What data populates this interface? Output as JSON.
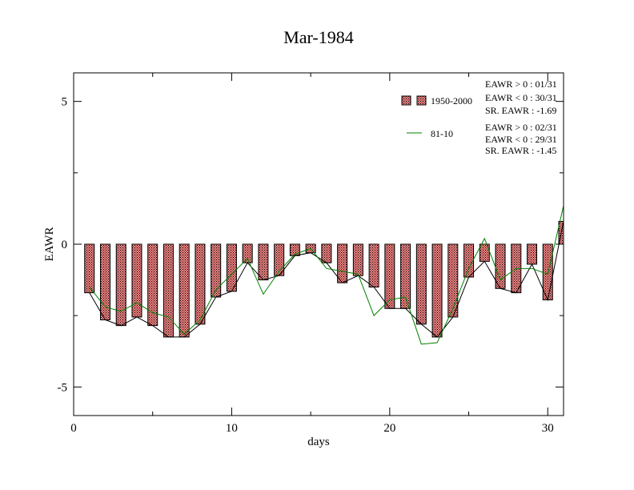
{
  "chart_data": {
    "type": "bar",
    "title": "Mar-1984",
    "xlabel": "days",
    "ylabel": "EAWR",
    "xlim": [
      0,
      31
    ],
    "ylim": [
      -6,
      6
    ],
    "x_ticks": [
      0,
      10,
      20,
      30
    ],
    "y_ticks": [
      -5,
      0,
      5
    ],
    "x": [
      1,
      2,
      3,
      4,
      5,
      6,
      7,
      8,
      9,
      10,
      11,
      12,
      13,
      14,
      15,
      16,
      17,
      18,
      19,
      20,
      21,
      22,
      23,
      24,
      25,
      26,
      27,
      28,
      29,
      30,
      31
    ],
    "legend_position": "top-right",
    "grid": false,
    "series": [
      {
        "name": "1950-2000",
        "kind": "bar",
        "color": "#e87878",
        "values": [
          -1.7,
          -2.65,
          -2.85,
          -2.55,
          -2.85,
          -3.25,
          -3.25,
          -2.8,
          -1.85,
          -1.65,
          -0.65,
          -1.25,
          -1.1,
          -0.4,
          -0.3,
          -0.65,
          -1.35,
          -1.1,
          -1.5,
          -2.25,
          -2.25,
          -2.8,
          -3.25,
          -2.55,
          -1.15,
          -0.6,
          -1.55,
          -1.7,
          -0.7,
          -1.95,
          0.8
        ]
      },
      {
        "name": "",
        "kind": "line",
        "color": "#000000",
        "values": [
          -1.7,
          -2.65,
          -2.85,
          -2.55,
          -2.85,
          -3.25,
          -3.25,
          -2.8,
          -1.85,
          -1.65,
          -0.65,
          -1.25,
          -1.1,
          -0.4,
          -0.3,
          -0.65,
          -1.35,
          -1.1,
          -1.5,
          -2.25,
          -2.25,
          -2.8,
          -3.25,
          -2.55,
          -1.15,
          -0.6,
          -1.55,
          -1.7,
          -0.7,
          -1.95,
          0.8
        ]
      },
      {
        "name": "81-10",
        "kind": "line",
        "color": "#008000",
        "values": [
          -1.5,
          -2.2,
          -2.35,
          -2.05,
          -2.4,
          -2.55,
          -3.15,
          -2.65,
          -1.6,
          -1.05,
          -0.5,
          -1.75,
          -0.95,
          -0.35,
          -0.15,
          -0.85,
          -0.95,
          -1.05,
          -2.5,
          -1.95,
          -1.85,
          -3.5,
          -3.45,
          -2.25,
          -0.85,
          0.2,
          -1.25,
          -0.85,
          -0.85,
          -1.05,
          1.35
        ]
      }
    ],
    "stats": [
      {
        "series": "1950-2000",
        "lines": [
          "EAWR > 0 : 01/31",
          "EAWR < 0 : 30/31",
          "SR. EAWR : -1.69"
        ]
      },
      {
        "series": "81-10",
        "lines": [
          "EAWR > 0 : 02/31",
          "EAWR < 0 : 29/31",
          "SR. EAWR : -1.45"
        ]
      }
    ]
  }
}
